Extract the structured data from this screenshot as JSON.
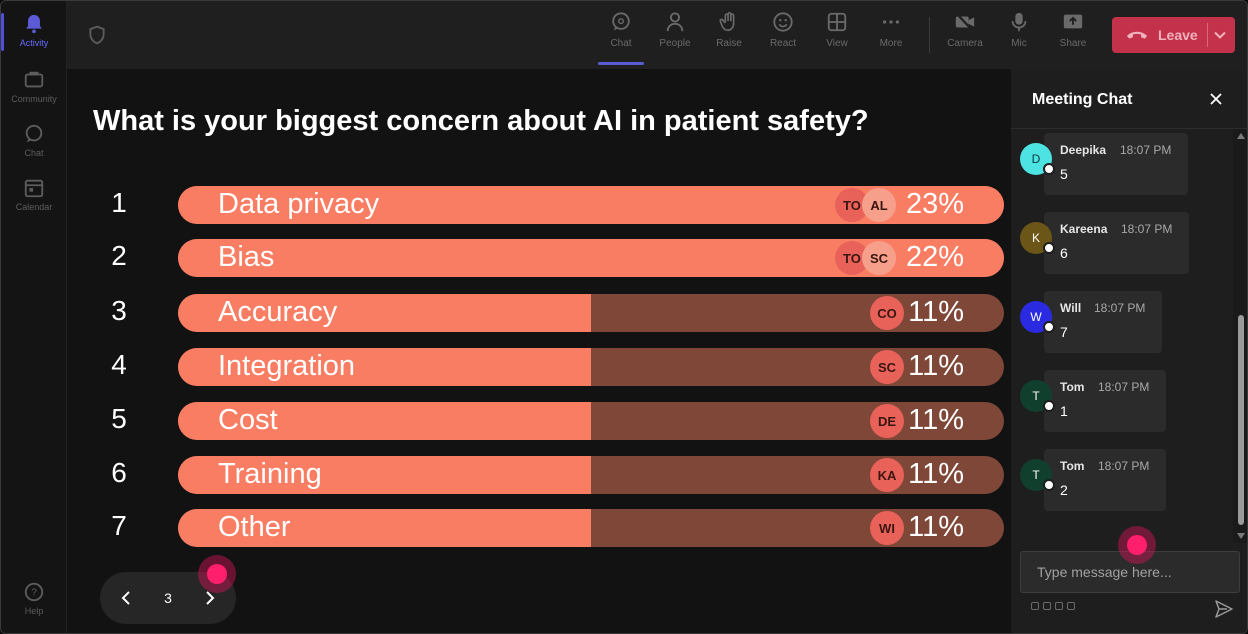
{
  "rail": {
    "items": [
      {
        "label": "Activity",
        "icon": "bell-icon",
        "active": true
      },
      {
        "label": "Community",
        "icon": "community-icon",
        "active": false
      },
      {
        "label": "Chat",
        "icon": "chat-icon",
        "active": false
      },
      {
        "label": "Calendar",
        "icon": "calendar-icon",
        "active": false
      }
    ],
    "help_label": "Help"
  },
  "toolbar": {
    "chat_label": "Chat",
    "people_label": "People",
    "raise_label": "Raise",
    "react_label": "React",
    "view_label": "View",
    "more_label": "More",
    "camera_label": "Camera",
    "mic_label": "Mic",
    "share_label": "Share",
    "leave_label": "Leave",
    "leave_color": "#c4314b",
    "accent": "#5b5bd6"
  },
  "poll": {
    "question": "What is your biggest concern about AI in patient safety?",
    "fill_color": "#f97d63",
    "track_color": "#7f4738",
    "options": [
      {
        "num": "1",
        "label": "Data privacy",
        "percent": 23,
        "percent_label": "23%",
        "avatars": [
          "TO",
          "AL"
        ]
      },
      {
        "num": "2",
        "label": "Bias",
        "percent": 22,
        "percent_label": "22%",
        "avatars": [
          "TO",
          "SC"
        ]
      },
      {
        "num": "3",
        "label": "Accuracy",
        "percent": 11,
        "percent_label": "11%",
        "avatars": [
          "CO"
        ]
      },
      {
        "num": "4",
        "label": "Integration",
        "percent": 11,
        "percent_label": "11%",
        "avatars": [
          "SC"
        ]
      },
      {
        "num": "5",
        "label": "Cost",
        "percent": 11,
        "percent_label": "11%",
        "avatars": [
          "DE"
        ]
      },
      {
        "num": "6",
        "label": "Training",
        "percent": 11,
        "percent_label": "11%",
        "avatars": [
          "KA"
        ]
      },
      {
        "num": "7",
        "label": "Other",
        "percent": 11,
        "percent_label": "11%",
        "avatars": [
          "WI"
        ]
      }
    ],
    "page": "3"
  },
  "chat": {
    "title": "Meeting Chat",
    "placeholder": "Type message here...",
    "messages": [
      {
        "initial": "D",
        "name": "Deepika",
        "time": "18:07 PM",
        "text": "5",
        "avatar_color": "#4de3e3",
        "initial_color": "#0a3b3b"
      },
      {
        "initial": "K",
        "name": "Kareena",
        "time": "18:07 PM",
        "text": "6",
        "avatar_color": "#6b5618",
        "initial_color": "#ffffff"
      },
      {
        "initial": "W",
        "name": "Will",
        "time": "18:07 PM",
        "text": "7",
        "avatar_color": "#2a2ae0",
        "initial_color": "#ffffff"
      },
      {
        "initial": "T",
        "name": "Tom",
        "time": "18:07 PM",
        "text": "1",
        "avatar_color": "#10402d",
        "initial_color": "#ffffff"
      },
      {
        "initial": "T",
        "name": "Tom",
        "time": "18:07 PM",
        "text": "2",
        "avatar_color": "#10402d",
        "initial_color": "#ffffff"
      }
    ]
  }
}
